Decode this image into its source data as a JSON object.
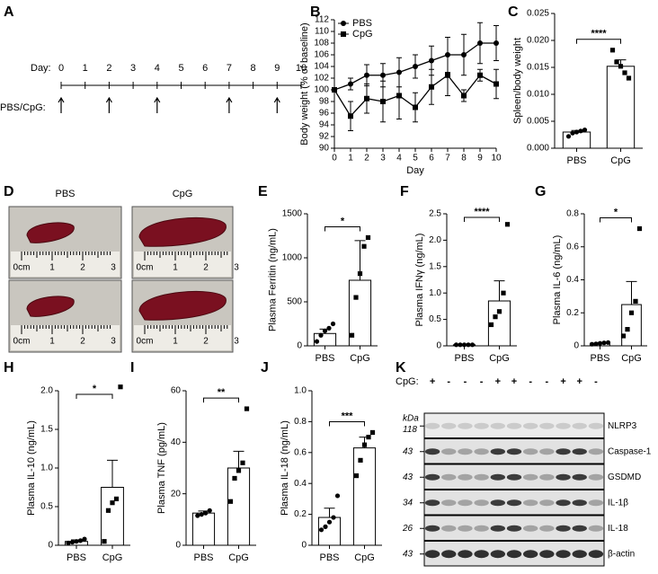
{
  "timeline": {
    "panel": "A",
    "label": "Day:",
    "days": [
      0,
      1,
      2,
      3,
      4,
      5,
      6,
      7,
      8,
      9,
      10
    ],
    "treatment_label": "PBS/CpG:",
    "injection_days": [
      0,
      2,
      4,
      7,
      9
    ]
  },
  "photos": {
    "panel": "D",
    "columns": [
      "PBS",
      "CpG"
    ],
    "ruler_labels": [
      "0cm",
      "1",
      "2",
      "3"
    ]
  },
  "blot": {
    "panel": "K",
    "row_label": "CpG:",
    "lanes": [
      "+",
      "-",
      "-",
      "-",
      "+",
      "+",
      "-",
      "-",
      "+",
      "+",
      "-"
    ],
    "kda_label": "kDa",
    "bands": [
      {
        "name": "NLRP3",
        "kda": "118"
      },
      {
        "name": "Caspase-1",
        "kda": "43"
      },
      {
        "name": "GSDMD",
        "kda": "43"
      },
      {
        "name": "IL-1β",
        "kda": "34"
      },
      {
        "name": "IL-18",
        "kda": "26"
      },
      {
        "name": "β-actin",
        "kda": "43"
      }
    ]
  },
  "chart_data": [
    {
      "type": "line",
      "panel": "B",
      "xlabel": "Day",
      "ylabel": "Body weight (% of baseline)",
      "x": [
        0,
        1,
        2,
        3,
        4,
        5,
        6,
        7,
        8,
        9,
        10
      ],
      "xlim": [
        0,
        10
      ],
      "xticks": [
        0,
        1,
        2,
        3,
        4,
        5,
        6,
        7,
        8,
        9,
        10
      ],
      "ylim": [
        90,
        112
      ],
      "yticks": [
        90,
        92,
        94,
        96,
        98,
        100,
        102,
        104,
        106,
        108,
        110,
        112
      ],
      "legend": "top-left",
      "series": [
        {
          "name": "PBS",
          "color": "#000000",
          "marker": "circle",
          "values": [
            100,
            101,
            102.5,
            102.5,
            103,
            104,
            105,
            106,
            106,
            108,
            108
          ],
          "errors": [
            0,
            1,
            1.8,
            2,
            2.5,
            2,
            2.5,
            3,
            3.5,
            3.5,
            3
          ]
        },
        {
          "name": "CpG",
          "color": "#000000",
          "marker": "square",
          "values": [
            100,
            95.5,
            98.5,
            98,
            99,
            97,
            100.5,
            102.5,
            99,
            102.5,
            101
          ],
          "errors": [
            0,
            2.5,
            2.5,
            3.5,
            4,
            2.5,
            3,
            3.5,
            1,
            1,
            2.5
          ]
        }
      ]
    },
    {
      "type": "bar",
      "panel": "C",
      "ylabel": "Spleen/body weight",
      "categories": [
        "PBS",
        "CpG"
      ],
      "color": "#ffffff",
      "values": [
        0.003,
        0.0152
      ],
      "errors": [
        0.0003,
        0.0012
      ],
      "points": [
        [
          0.0022,
          0.0028,
          0.003,
          0.0032,
          0.0034
        ],
        [
          0.0182,
          0.016,
          0.0152,
          0.014,
          0.013
        ]
      ],
      "ylim": [
        0,
        0.025
      ],
      "yticks": [
        {
          "value": 0,
          "label": "0.000"
        },
        {
          "value": 0.005,
          "label": "0.005"
        },
        {
          "value": 0.01,
          "label": "0.010"
        },
        {
          "value": 0.015,
          "label": "0.015"
        },
        {
          "value": 0.02,
          "label": "0.020"
        },
        {
          "value": 0.025,
          "label": "0.025"
        }
      ],
      "significance": "****"
    },
    {
      "type": "bar",
      "panel": "E",
      "ylabel": "Plasma Ferritin (ng/mL)",
      "categories": [
        "PBS",
        "CpG"
      ],
      "color": "#ffffff",
      "values": [
        140,
        745
      ],
      "errors": [
        50,
        450
      ],
      "points": [
        [
          50,
          120,
          170,
          200,
          250
        ],
        [
          120,
          550,
          820,
          1130,
          1230
        ]
      ],
      "ylim": [
        0,
        1500
      ],
      "yticks": [
        0,
        500,
        1000,
        1500
      ],
      "significance": "*"
    },
    {
      "type": "bar",
      "panel": "F",
      "ylabel": "Plasma IFNγ (ng/mL)",
      "categories": [
        "PBS",
        "CpG"
      ],
      "color": "#ffffff",
      "values": [
        0.02,
        0.85
      ],
      "errors": [
        0.01,
        0.38
      ],
      "points": [
        [
          0.02,
          0.02,
          0.02,
          0.02,
          0.02
        ],
        [
          0.4,
          0.55,
          0.65,
          1.0,
          2.3
        ]
      ],
      "ylim": [
        0,
        2.5
      ],
      "yticks": [
        0,
        0.5,
        {
          "value": 1,
          "label": "1.0"
        },
        1.5,
        {
          "value": 2,
          "label": "2.0"
        },
        2.5
      ],
      "significance": "****"
    },
    {
      "type": "bar",
      "panel": "G",
      "ylabel": "Plasma IL-6 (ng/mL)",
      "categories": [
        "PBS",
        "CpG"
      ],
      "color": "#ffffff",
      "values": [
        0.015,
        0.25
      ],
      "errors": [
        0.005,
        0.14
      ],
      "points": [
        [
          0.01,
          0.012,
          0.015,
          0.018,
          0.02
        ],
        [
          0.06,
          0.1,
          0.2,
          0.27,
          0.71
        ]
      ],
      "ylim": [
        0,
        0.8
      ],
      "yticks": [
        0,
        0.2,
        0.4,
        0.6,
        0.8
      ],
      "significance": "*"
    },
    {
      "type": "bar",
      "panel": "H",
      "ylabel": "Plasma IL-10 (ng/mL)",
      "categories": [
        "PBS",
        "CpG"
      ],
      "color": "#ffffff",
      "values": [
        0.05,
        0.75
      ],
      "errors": [
        0.02,
        0.35
      ],
      "points": [
        [
          0.03,
          0.04,
          0.05,
          0.06,
          0.08
        ],
        [
          0.05,
          0.45,
          0.55,
          0.6,
          2.05
        ]
      ],
      "ylim": [
        0,
        2
      ],
      "yticks": [
        0,
        0.5,
        {
          "value": 1,
          "label": "1.0"
        },
        1.5,
        {
          "value": 2,
          "label": "2.0"
        }
      ],
      "significance": "*"
    },
    {
      "type": "bar",
      "panel": "I",
      "ylabel": "Plasma TNF (pg/mL)",
      "categories": [
        "PBS",
        "CpG"
      ],
      "color": "#ffffff",
      "values": [
        12.5,
        30
      ],
      "errors": [
        0.8,
        6.5
      ],
      "points": [
        [
          11.5,
          12,
          12.5,
          13.5
        ],
        [
          17,
          26,
          29,
          32,
          53
        ]
      ],
      "ylim": [
        0,
        60
      ],
      "yticks": [
        0,
        20,
        40,
        60
      ],
      "significance": "**"
    },
    {
      "type": "bar",
      "panel": "J",
      "ylabel": "Plasma IL-18 (ng/mL)",
      "categories": [
        "PBS",
        "CpG"
      ],
      "color": "#ffffff",
      "values": [
        0.18,
        0.63
      ],
      "errors": [
        0.06,
        0.07
      ],
      "points": [
        [
          0.1,
          0.12,
          0.15,
          0.18,
          0.32
        ],
        [
          0.45,
          0.55,
          0.65,
          0.7,
          0.73
        ]
      ],
      "ylim": [
        0,
        1
      ],
      "yticks": [
        0,
        0.2,
        0.4,
        0.6,
        0.8,
        {
          "value": 1,
          "label": "1.0"
        }
      ],
      "significance": "***"
    }
  ]
}
